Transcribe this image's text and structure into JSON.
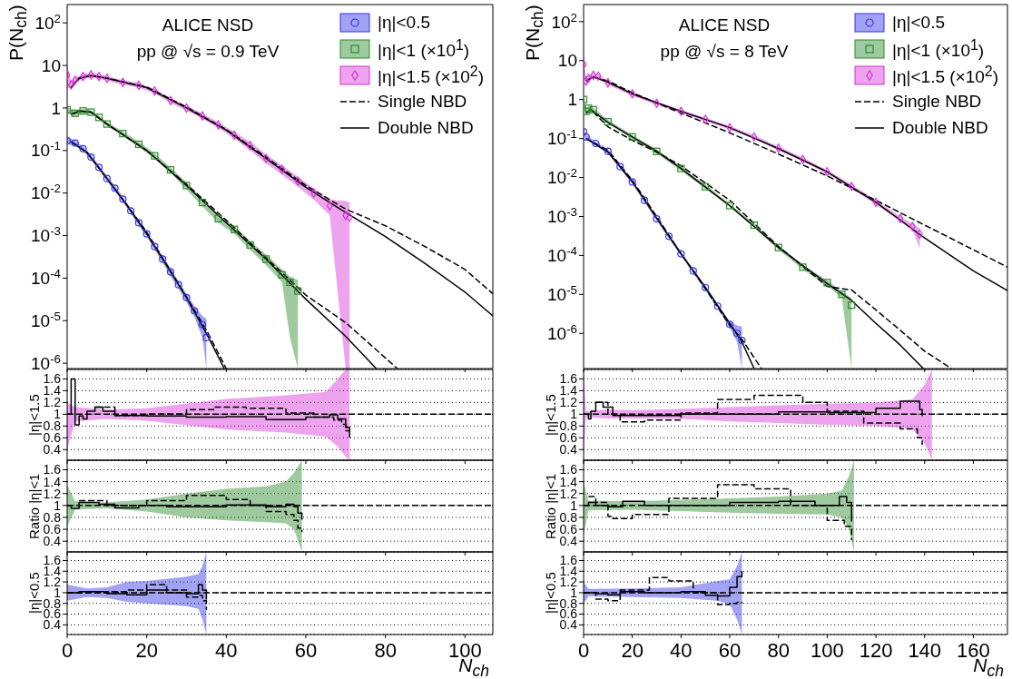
{
  "chart_data": [
    {
      "type": "scatter",
      "xlim": [
        0,
        107
      ],
      "xticks": [
        0,
        20,
        40,
        60,
        80,
        100
      ],
      "ylim": [
        7.5e-07,
        270
      ],
      "yticks": [
        {
          "value": 1e-06,
          "label": "10$^{-6}$"
        },
        {
          "value": 1e-05,
          "label": "10$^{-5}$"
        },
        {
          "value": 0.0001,
          "label": "10$^{-4}$"
        },
        {
          "value": 0.001,
          "label": "10$^{-3}$"
        },
        {
          "value": 0.01,
          "label": "10$^{-2}$"
        },
        {
          "value": 0.1,
          "label": "10$^{-1}$"
        },
        1,
        10,
        {
          "value": 100,
          "label": "10$^{2}$"
        }
      ],
      "log": "y",
      "ylabel": "P(N$_{ch}$)",
      "tick_labels": "y",
      "legend": "top right",
      "annotations": [
        "ALICE NSD",
        "pp @ √s = 0.9 TeV"
      ],
      "series": [
        {
          "type": "scatter",
          "name": "|η|<0.5",
          "color": "#3333e6",
          "marker": "circle",
          "x": [
            0,
            2,
            4,
            6,
            8,
            10,
            12,
            14,
            16,
            18,
            20,
            22,
            24,
            26,
            28,
            30,
            32,
            34,
            35
          ],
          "values": [
            0.17,
            0.15,
            0.11,
            0.07,
            0.04,
            0.022,
            0.013,
            0.0072,
            0.0038,
            0.002,
            0.0011,
            0.00055,
            0.00028,
            0.00014,
            7e-05,
            3.5e-05,
            1.7e-05,
            8e-06,
            4e-06
          ],
          "lower": [
            0.14,
            0.13,
            0.095,
            0.061,
            0.035,
            0.019,
            0.011,
            0.0062,
            0.0033,
            0.0017,
            0.00094,
            0.00046,
            0.00023,
            0.00011,
            5.6e-05,
            2.7e-05,
            1.2e-05,
            4e-06,
            7.5e-07
          ],
          "upper": [
            0.21,
            0.17,
            0.125,
            0.079,
            0.045,
            0.025,
            0.015,
            0.0082,
            0.0043,
            0.0023,
            0.0013,
            0.00064,
            0.00033,
            0.00017,
            8.4e-05,
            4.3e-05,
            2.2e-05,
            1.3e-05,
            1.1e-05
          ]
        },
        {
          "type": "scatter",
          "name": "|η|<1 (×10$^{1}$)",
          "color": "#2a8a2a",
          "marker": "square",
          "x": [
            0,
            2,
            4,
            6,
            8,
            10,
            14,
            18,
            22,
            26,
            30,
            34,
            38,
            42,
            46,
            50,
            54,
            56,
            58
          ],
          "values": [
            0.9,
            0.75,
            0.85,
            0.8,
            0.6,
            0.42,
            0.25,
            0.14,
            0.075,
            0.035,
            0.015,
            0.006,
            0.0025,
            0.0014,
            0.0006,
            0.00028,
            0.00012,
            8e-05,
            5e-05
          ],
          "lower": [
            0.75,
            0.65,
            0.75,
            0.72,
            0.54,
            0.38,
            0.22,
            0.12,
            0.065,
            0.03,
            0.012,
            0.0048,
            0.002,
            0.0011,
            0.00046,
            0.0002,
            8e-05,
            4e-06,
            7.5e-07
          ],
          "upper": [
            1.05,
            0.85,
            0.95,
            0.88,
            0.66,
            0.46,
            0.28,
            0.16,
            0.085,
            0.04,
            0.018,
            0.0072,
            0.003,
            0.0017,
            0.00074,
            0.00036,
            0.00016,
            0.00011,
            9e-05
          ]
        },
        {
          "type": "scatter",
          "name": "|η|<1.5 (×10$^{2}$)",
          "color": "#d633d6",
          "marker": "diamond",
          "x": [
            0,
            1,
            2,
            4,
            6,
            8,
            10,
            14,
            18,
            22,
            26,
            30,
            34,
            38,
            42,
            46,
            50,
            54,
            58,
            62,
            66,
            70,
            71
          ],
          "values": [
            6,
            3.5,
            4.5,
            5.5,
            6,
            5.5,
            5,
            4,
            3.4,
            2.5,
            1.5,
            1,
            0.65,
            0.4,
            0.23,
            0.13,
            0.065,
            0.036,
            0.019,
            0.01,
            0.005,
            0.003,
            0.0027
          ],
          "lower": [
            3,
            2.8,
            3.8,
            4.7,
            5.2,
            4.8,
            4.4,
            3.5,
            3,
            2.2,
            1.3,
            0.87,
            0.56,
            0.34,
            0.19,
            0.1,
            0.05,
            0.027,
            0.014,
            0.007,
            0.003,
            7.5e-07,
            7.5e-07
          ],
          "upper": [
            10,
            4.2,
            5.2,
            6.3,
            6.8,
            6.2,
            5.6,
            4.5,
            3.8,
            2.8,
            1.7,
            1.13,
            0.74,
            0.46,
            0.27,
            0.16,
            0.08,
            0.045,
            0.024,
            0.013,
            0.007,
            0.0065,
            0.006
          ]
        },
        {
          "type": "line",
          "name": "Single NBD",
          "color": "#000000",
          "line_style": "dashed",
          "x": [
            1,
            5,
            10,
            15,
            20,
            25,
            30,
            35,
            40
          ],
          "values": [
            0.16,
            0.09,
            0.022,
            0.0053,
            0.0012,
            0.00021,
            3.6e-05,
            6e-06,
            7.5e-07
          ]
        },
        {
          "type": "line",
          "color": "#000000",
          "line_style": "dashed",
          "x": [
            1,
            3,
            6,
            10,
            20,
            30,
            40,
            50,
            60,
            70,
            83
          ],
          "values": [
            0.7,
            0.85,
            0.8,
            0.42,
            0.1,
            0.016,
            0.0023,
            0.0003,
            4e-05,
            9e-06,
            7.5e-07
          ]
        },
        {
          "type": "line",
          "color": "#000000",
          "line_style": "dashed",
          "x": [
            1,
            3,
            6,
            10,
            20,
            30,
            40,
            50,
            60,
            70,
            80,
            90,
            100,
            107
          ],
          "values": [
            3,
            5,
            5.8,
            5,
            3.1,
            1.05,
            0.31,
            0.07,
            0.015,
            0.0042,
            0.0017,
            0.00055,
            0.00016,
            4.3e-05
          ]
        },
        {
          "type": "line",
          "name": "Double NBD",
          "color": "#000000",
          "line_style": "solid",
          "x": [
            1,
            5,
            10,
            15,
            20,
            25,
            30,
            35,
            39.5
          ],
          "values": [
            0.16,
            0.09,
            0.022,
            0.0052,
            0.0011,
            0.0002,
            3.5e-05,
            5e-06,
            7.5e-07
          ]
        },
        {
          "type": "line",
          "color": "#000000",
          "line_style": "solid",
          "x": [
            1,
            3,
            6,
            10,
            20,
            30,
            40,
            50,
            60,
            70,
            77.7
          ],
          "values": [
            0.7,
            0.85,
            0.8,
            0.42,
            0.1,
            0.015,
            0.002,
            0.00028,
            3.2e-05,
            4.3e-06,
            7.5e-07
          ]
        },
        {
          "type": "line",
          "color": "#000000",
          "line_style": "solid",
          "x": [
            1,
            3,
            6,
            10,
            20,
            30,
            40,
            50,
            60,
            70,
            80,
            90,
            100,
            107
          ],
          "values": [
            3,
            5,
            5.8,
            5,
            3,
            1,
            0.3,
            0.065,
            0.0136,
            0.0035,
            0.00095,
            0.00022,
            4.7e-05,
            1.3e-05
          ]
        }
      ]
    },
    {
      "type": "scatter",
      "xlim": [
        0,
        174
      ],
      "xticks": [
        0,
        20,
        40,
        60,
        80,
        100,
        120,
        140,
        160
      ],
      "ylim": [
        1.25e-07,
        275
      ],
      "yticks": [
        {
          "value": 1e-06,
          "label": "10$^{-6}$"
        },
        {
          "value": 1e-05,
          "label": "10$^{-5}$"
        },
        {
          "value": 0.0001,
          "label": "10$^{-4}$"
        },
        {
          "value": 0.001,
          "label": "10$^{-3}$"
        },
        {
          "value": 0.01,
          "label": "10$^{-2}$"
        },
        {
          "value": 0.1,
          "label": "10$^{-1}$"
        },
        1,
        10,
        {
          "value": 100,
          "label": "10$^{2}$"
        }
      ],
      "log": "y",
      "ylabel": "P(N$_{ch}$)",
      "tick_labels": "y",
      "legend": "top right",
      "annotations": [
        "ALICE NSD",
        "pp @ √s = 8 TeV"
      ],
      "series": [
        {
          "type": "scatter",
          "name": "|η|<0.5",
          "color": "#3333e6",
          "marker": "circle",
          "x": [
            0,
            1,
            5,
            10,
            15,
            20,
            25,
            30,
            35,
            40,
            45,
            50,
            55,
            60,
            63,
            65
          ],
          "values": [
            0.15,
            0.11,
            0.075,
            0.047,
            0.019,
            0.0077,
            0.0026,
            0.00087,
            0.00031,
            0.00011,
            4e-05,
            1.5e-05,
            5e-06,
            1.7e-06,
            1e-06,
            6.6e-07
          ],
          "lower": [
            0.12,
            0.095,
            0.066,
            0.041,
            0.017,
            0.0068,
            0.0023,
            0.00077,
            0.00027,
            9.7e-05,
            3.5e-05,
            1.3e-05,
            4.4e-06,
            1.4e-06,
            6e-07,
            1.25e-07
          ],
          "upper": [
            0.18,
            0.125,
            0.084,
            0.053,
            0.021,
            0.0086,
            0.0029,
            0.00097,
            0.00035,
            0.000123,
            4.5e-05,
            1.7e-05,
            5.6e-06,
            2e-06,
            1.6e-06,
            1.5e-06
          ]
        },
        {
          "type": "scatter",
          "name": "|η|<1 (×10$^{1}$)",
          "color": "#2a8a2a",
          "marker": "square",
          "x": [
            0,
            1,
            2,
            4,
            10,
            20,
            30,
            40,
            50,
            60,
            70,
            80,
            90,
            100,
            106,
            110
          ],
          "values": [
            1,
            0.5,
            0.6,
            0.55,
            0.27,
            0.11,
            0.047,
            0.017,
            0.0058,
            0.0019,
            0.0006,
            0.00016,
            5e-05,
            2e-05,
            1e-05,
            5.3e-06
          ],
          "lower": [
            0.85,
            0.4,
            0.52,
            0.48,
            0.24,
            0.097,
            0.041,
            0.015,
            0.0051,
            0.0017,
            0.00053,
            0.00014,
            4.4e-05,
            1.7e-05,
            8e-06,
            1.25e-07
          ],
          "upper": [
            1.15,
            0.6,
            0.68,
            0.62,
            0.3,
            0.123,
            0.053,
            0.019,
            0.0065,
            0.0021,
            0.00067,
            0.00018,
            5.6e-05,
            2.3e-05,
            1.2e-05,
            8e-06
          ]
        },
        {
          "type": "scatter",
          "name": "|η|<1.5 (×10$^{2}$)",
          "color": "#d633d6",
          "marker": "diamond",
          "x": [
            0,
            1,
            2,
            4,
            6,
            10,
            20,
            30,
            40,
            50,
            60,
            70,
            80,
            90,
            100,
            110,
            120,
            130,
            135,
            138
          ],
          "values": [
            8,
            3,
            3.5,
            4.2,
            4,
            2.7,
            1.4,
            0.8,
            0.5,
            0.31,
            0.19,
            0.11,
            0.056,
            0.029,
            0.014,
            0.0059,
            0.0023,
            0.00089,
            0.00055,
            0.00035
          ],
          "lower": [
            4,
            2.5,
            3,
            3.7,
            3.6,
            2.4,
            1.25,
            0.72,
            0.45,
            0.28,
            0.17,
            0.1,
            0.05,
            0.026,
            0.0125,
            0.0052,
            0.002,
            0.00077,
            0.00045,
            0.00015
          ],
          "upper": [
            15,
            3.5,
            4,
            4.7,
            4.4,
            3,
            1.55,
            0.88,
            0.55,
            0.34,
            0.21,
            0.12,
            0.062,
            0.032,
            0.0155,
            0.0066,
            0.0026,
            0.001,
            0.00065,
            0.0005
          ]
        },
        {
          "type": "line",
          "name": "Single NBD",
          "color": "#000000",
          "line_style": "dashed",
          "x": [
            1,
            10,
            20,
            30,
            40,
            50,
            60,
            65,
            73
          ],
          "values": [
            0.1,
            0.05,
            0.0085,
            0.001,
            0.00011,
            1.4e-05,
            1.6e-06,
            7e-07,
            1.25e-07
          ]
        },
        {
          "type": "line",
          "color": "#000000",
          "line_style": "dashed",
          "x": [
            1,
            3,
            10,
            20,
            30,
            40,
            60,
            80,
            100,
            110,
            120,
            130,
            140,
            151
          ],
          "values": [
            0.45,
            0.55,
            0.2,
            0.09,
            0.045,
            0.02,
            0.0026,
            0.00017,
            1.6e-05,
            1.3e-05,
            4e-06,
            1.2e-06,
            3.5e-07,
            1.25e-07
          ]
        },
        {
          "type": "line",
          "color": "#000000",
          "line_style": "dashed",
          "x": [
            1,
            4,
            10,
            20,
            40,
            60,
            80,
            100,
            120,
            140,
            160,
            174
          ],
          "values": [
            3,
            3.8,
            3,
            1.5,
            0.45,
            0.14,
            0.04,
            0.011,
            0.0026,
            0.0006,
            0.00014,
            5e-05
          ]
        },
        {
          "type": "line",
          "name": "Double NBD",
          "color": "#000000",
          "line_style": "solid",
          "x": [
            1,
            10,
            20,
            30,
            40,
            50,
            60,
            65,
            70
          ],
          "values": [
            0.1,
            0.045,
            0.0078,
            0.0009,
            0.00011,
            1.5e-05,
            1.8e-06,
            6e-07,
            1.25e-07
          ]
        },
        {
          "type": "line",
          "color": "#000000",
          "line_style": "solid",
          "x": [
            1,
            3,
            10,
            20,
            30,
            40,
            60,
            80,
            100,
            110,
            120,
            130,
            139.5
          ],
          "values": [
            0.45,
            0.55,
            0.26,
            0.11,
            0.047,
            0.017,
            0.0019,
            0.00016,
            1.9e-05,
            7e-06,
            1.8e-06,
            5e-07,
            1.25e-07
          ]
        },
        {
          "type": "line",
          "color": "#000000",
          "line_style": "solid",
          "x": [
            1,
            4,
            10,
            20,
            40,
            60,
            80,
            100,
            120,
            140,
            160,
            174
          ],
          "values": [
            3,
            3.8,
            2.8,
            1.4,
            0.5,
            0.19,
            0.055,
            0.014,
            0.0023,
            0.00028,
            4e-05,
            1.25e-05
          ]
        }
      ]
    },
    {
      "type": "line",
      "xlim": [
        0,
        107
      ],
      "xticks": [
        0,
        20,
        40,
        60,
        80,
        100
      ],
      "ylim": [
        0.22,
        1.76
      ],
      "yticks": [
        0.4,
        0.6,
        0.8,
        1,
        1.2,
        1.4,
        1.6
      ],
      "ylabel": "|η|<1.5",
      "grid": "y",
      "tick_labels": "y",
      "series": [
        {
          "type": "line",
          "color": "#000000",
          "line_style": "dashed",
          "x": [
            0,
            2,
            10,
            20,
            40,
            55,
            65,
            68,
            70,
            71,
            107
          ],
          "values": [
            1,
            1,
            1,
            1,
            1,
            1,
            1,
            1,
            1,
            1,
            1
          ],
          "lower": [
            0.4,
            0.88,
            0.92,
            0.89,
            0.74,
            0.69,
            0.62,
            0.45,
            0.28,
            0.22,
            null
          ],
          "upper": [
            1.2,
            1.12,
            1.08,
            1.1,
            1.26,
            1.32,
            1.38,
            1.6,
            1.76,
            1.76,
            null
          ]
        },
        {
          "type": "step",
          "color": "#000000",
          "line_style": "solid",
          "x": [
            0,
            1,
            2,
            3,
            4,
            5,
            7,
            9,
            12,
            20,
            30,
            40,
            50,
            60,
            66,
            68,
            70,
            71
          ],
          "values": [
            1,
            1.6,
            0.82,
            0.97,
            0.92,
            1.05,
            1.12,
            1.05,
            0.98,
            0.97,
            0.95,
            0.96,
            0.91,
            0.95,
            0.99,
            0.92,
            0.78,
            0.6
          ]
        },
        {
          "type": "step",
          "color": "#000000",
          "line_style": "dashed",
          "x": [
            7,
            12,
            20,
            30,
            37,
            45,
            55,
            62,
            67,
            69,
            70,
            71
          ],
          "values": [
            1.12,
            0.98,
            1,
            1.08,
            1.12,
            1.1,
            1.02,
            0.95,
            0.9,
            0.83,
            0.72,
            0.72
          ]
        }
      ]
    },
    {
      "type": "line",
      "xlim": [
        0,
        174
      ],
      "xticks": [
        0,
        20,
        40,
        60,
        80,
        100,
        120,
        140,
        160
      ],
      "ylim": [
        0.22,
        1.76
      ],
      "yticks": [
        0.4,
        0.6,
        0.8,
        1,
        1.2,
        1.4,
        1.6
      ],
      "ylabel": "|η|<1.5",
      "grid": "y",
      "tick_labels": "y",
      "series": [
        {
          "type": "line",
          "color": "#000000",
          "line_style": "dashed",
          "x": [
            0,
            1,
            10,
            20,
            40,
            60,
            80,
            100,
            120,
            135,
            140,
            143,
            174
          ],
          "values": [
            1,
            1,
            1,
            1,
            1,
            1,
            1,
            1,
            1,
            1,
            1,
            1,
            1
          ],
          "lower": [
            0.3,
            0.95,
            0.93,
            0.93,
            0.92,
            0.88,
            0.85,
            0.82,
            0.8,
            0.75,
            0.5,
            0.22,
            null
          ],
          "upper": [
            1.76,
            1.05,
            1.08,
            1.07,
            1.09,
            1.12,
            1.15,
            1.18,
            1.2,
            1.25,
            1.5,
            1.76,
            null
          ]
        },
        {
          "type": "step",
          "color": "#000000",
          "line_style": "solid",
          "x": [
            0,
            2,
            3,
            5,
            8,
            12,
            20,
            40,
            60,
            80,
            100,
            120,
            130,
            135,
            138,
            139
          ],
          "values": [
            1,
            0.92,
            1.05,
            1.2,
            1.12,
            0.98,
            0.98,
            1,
            1,
            1.04,
            1.03,
            1.1,
            1.22,
            1.22,
            1.08,
            0.97
          ]
        },
        {
          "type": "step",
          "color": "#000000",
          "line_style": "dashed",
          "x": [
            5,
            10,
            15,
            25,
            40,
            55,
            70,
            80,
            90,
            100,
            115,
            130,
            137,
            139
          ],
          "values": [
            1.2,
            1,
            0.87,
            0.9,
            1.02,
            1.25,
            1.32,
            1.32,
            1.2,
            1.05,
            0.85,
            0.75,
            0.6,
            0.48
          ]
        }
      ]
    },
    {
      "type": "line",
      "xlim": [
        0,
        107
      ],
      "xticks": [
        0,
        20,
        40,
        60,
        80,
        100
      ],
      "ylim": [
        0.22,
        1.76
      ],
      "yticks": [
        0.4,
        0.6,
        0.8,
        1,
        1.2,
        1.4,
        1.6
      ],
      "ylabel": "Ratio |η|<1",
      "grid": "y",
      "tick_labels": "y",
      "series": [
        {
          "type": "line",
          "color": "#000000",
          "line_style": "dashed",
          "x": [
            0,
            2,
            10,
            20,
            30,
            40,
            50,
            55,
            57,
            59,
            107
          ],
          "values": [
            1,
            1,
            1,
            1,
            1,
            1,
            1,
            1,
            1,
            1,
            1
          ],
          "lower": [
            0.65,
            0.93,
            0.95,
            0.9,
            0.8,
            0.75,
            0.72,
            0.7,
            0.6,
            0.22,
            null
          ],
          "upper": [
            1.35,
            1.07,
            1.05,
            1.1,
            1.2,
            1.28,
            1.32,
            1.4,
            1.55,
            1.76,
            null
          ]
        },
        {
          "type": "step",
          "color": "#000000",
          "line_style": "solid",
          "x": [
            0,
            1,
            3,
            8,
            12,
            18,
            25,
            40,
            50,
            55,
            57,
            58,
            59
          ],
          "values": [
            1,
            0.95,
            1.05,
            1.02,
            0.96,
            1,
            0.98,
            1.01,
            0.98,
            1.02,
            0.98,
            0.87,
            0.76
          ]
        },
        {
          "type": "step",
          "color": "#000000",
          "line_style": "dashed",
          "x": [
            3,
            10,
            20,
            30,
            40,
            46,
            50,
            55,
            57,
            58,
            59
          ],
          "values": [
            1.08,
            1,
            1.08,
            1.17,
            1.1,
            1,
            0.9,
            0.85,
            0.75,
            0.62,
            0.55
          ]
        }
      ]
    },
    {
      "type": "line",
      "xlim": [
        0,
        174
      ],
      "xticks": [
        0,
        20,
        40,
        60,
        80,
        100,
        120,
        140,
        160
      ],
      "ylim": [
        0.22,
        1.76
      ],
      "yticks": [
        0.4,
        0.6,
        0.8,
        1,
        1.2,
        1.4,
        1.6
      ],
      "ylabel": "Ratio |η|<1",
      "grid": "y",
      "tick_labels": "y",
      "series": [
        {
          "type": "line",
          "color": "#000000",
          "line_style": "dashed",
          "x": [
            0,
            2,
            20,
            60,
            80,
            100,
            106,
            109,
            111,
            174
          ],
          "values": [
            1,
            1,
            1,
            1,
            1,
            1,
            1,
            1,
            1,
            1
          ],
          "lower": [
            0.5,
            0.92,
            0.93,
            0.88,
            0.86,
            0.85,
            0.8,
            0.6,
            0.22,
            null
          ],
          "upper": [
            1.4,
            1.08,
            1.07,
            1.12,
            1.15,
            1.2,
            1.25,
            1.5,
            1.76,
            null
          ]
        },
        {
          "type": "step",
          "color": "#000000",
          "line_style": "solid",
          "x": [
            0,
            2,
            5,
            10,
            16,
            25,
            40,
            60,
            80,
            95,
            105,
            108,
            110
          ],
          "values": [
            1,
            1.05,
            1,
            0.98,
            1.07,
            1,
            1,
            1.05,
            1.07,
            1,
            1.15,
            1.05,
            0.73
          ]
        },
        {
          "type": "step",
          "color": "#000000",
          "line_style": "dashed",
          "x": [
            2,
            5,
            10,
            12,
            20,
            35,
            55,
            70,
            85,
            100,
            107,
            110
          ],
          "values": [
            1.15,
            1.05,
            0.82,
            0.78,
            0.85,
            1.12,
            1.35,
            1.28,
            1,
            0.75,
            0.65,
            0.42
          ]
        }
      ]
    },
    {
      "type": "line",
      "xlim": [
        0,
        107
      ],
      "xticks": [
        0,
        20,
        40,
        60,
        80,
        100
      ],
      "ylim": [
        0.22,
        1.76
      ],
      "yticks": [
        0.4,
        0.6,
        0.8,
        1,
        1.2,
        1.4,
        1.6
      ],
      "ylabel": "|η|<0.5",
      "xlabel": "N$_{ch}$",
      "grid": "y",
      "series": [
        {
          "type": "line",
          "color": "#000000",
          "line_style": "dashed",
          "x": [
            0,
            5,
            10,
            15,
            20,
            30,
            33,
            34,
            35,
            107
          ],
          "values": [
            1,
            1,
            1,
            1,
            1,
            1,
            1,
            1,
            1,
            1
          ],
          "lower": [
            0.85,
            0.92,
            0.9,
            0.83,
            0.8,
            0.75,
            0.7,
            0.5,
            0.22,
            null
          ],
          "upper": [
            1.15,
            1.08,
            1.1,
            1.2,
            1.22,
            1.3,
            1.35,
            1.5,
            1.76,
            null
          ]
        },
        {
          "type": "step",
          "color": "#000000",
          "line_style": "solid",
          "x": [
            0,
            3,
            10,
            15,
            20,
            25,
            30,
            33,
            34,
            35
          ],
          "values": [
            1,
            1.02,
            0.98,
            0.96,
            1.05,
            1,
            0.98,
            1.15,
            1.05,
            0.87
          ]
        },
        {
          "type": "step",
          "color": "#000000",
          "line_style": "dashed",
          "x": [
            0,
            5,
            10,
            15,
            20,
            25,
            30,
            33,
            34,
            35
          ],
          "values": [
            1,
            1,
            1.02,
            1.05,
            1.15,
            1.05,
            0.92,
            0.95,
            0.85,
            0.68
          ]
        }
      ]
    },
    {
      "type": "line",
      "xlim": [
        0,
        174
      ],
      "xticks": [
        0,
        20,
        40,
        60,
        80,
        100,
        120,
        140,
        160
      ],
      "ylim": [
        0.22,
        1.76
      ],
      "yticks": [
        0.4,
        0.6,
        0.8,
        1,
        1.2,
        1.4,
        1.6
      ],
      "ylabel": "|η|<0.5",
      "xlabel": "N$_{ch}$",
      "grid": "y",
      "series": [
        {
          "type": "line",
          "color": "#000000",
          "line_style": "dashed",
          "x": [
            0,
            2,
            20,
            40,
            55,
            60,
            63,
            65,
            174
          ],
          "values": [
            1,
            1,
            1,
            1,
            1,
            1,
            1,
            1,
            1
          ],
          "lower": [
            0.8,
            0.93,
            0.92,
            0.9,
            0.85,
            0.78,
            0.5,
            0.22,
            null
          ],
          "upper": [
            1.2,
            1.07,
            1.08,
            1.1,
            1.22,
            1.25,
            1.5,
            1.76,
            null
          ]
        },
        {
          "type": "step",
          "color": "#000000",
          "line_style": "solid",
          "x": [
            0,
            5,
            10,
            15,
            25,
            40,
            50,
            55,
            60,
            63,
            65
          ],
          "values": [
            1,
            0.98,
            0.96,
            1.02,
            1,
            1.02,
            0.95,
            0.94,
            1.1,
            1.3,
            1.4
          ]
        },
        {
          "type": "step",
          "color": "#000000",
          "line_style": "dashed",
          "x": [
            0,
            5,
            10,
            15,
            27,
            35,
            45,
            55,
            60,
            63,
            65
          ],
          "values": [
            1,
            0.88,
            0.85,
            1.05,
            1.28,
            1.22,
            1,
            0.78,
            0.8,
            0.82,
            0.8
          ]
        }
      ]
    }
  ]
}
